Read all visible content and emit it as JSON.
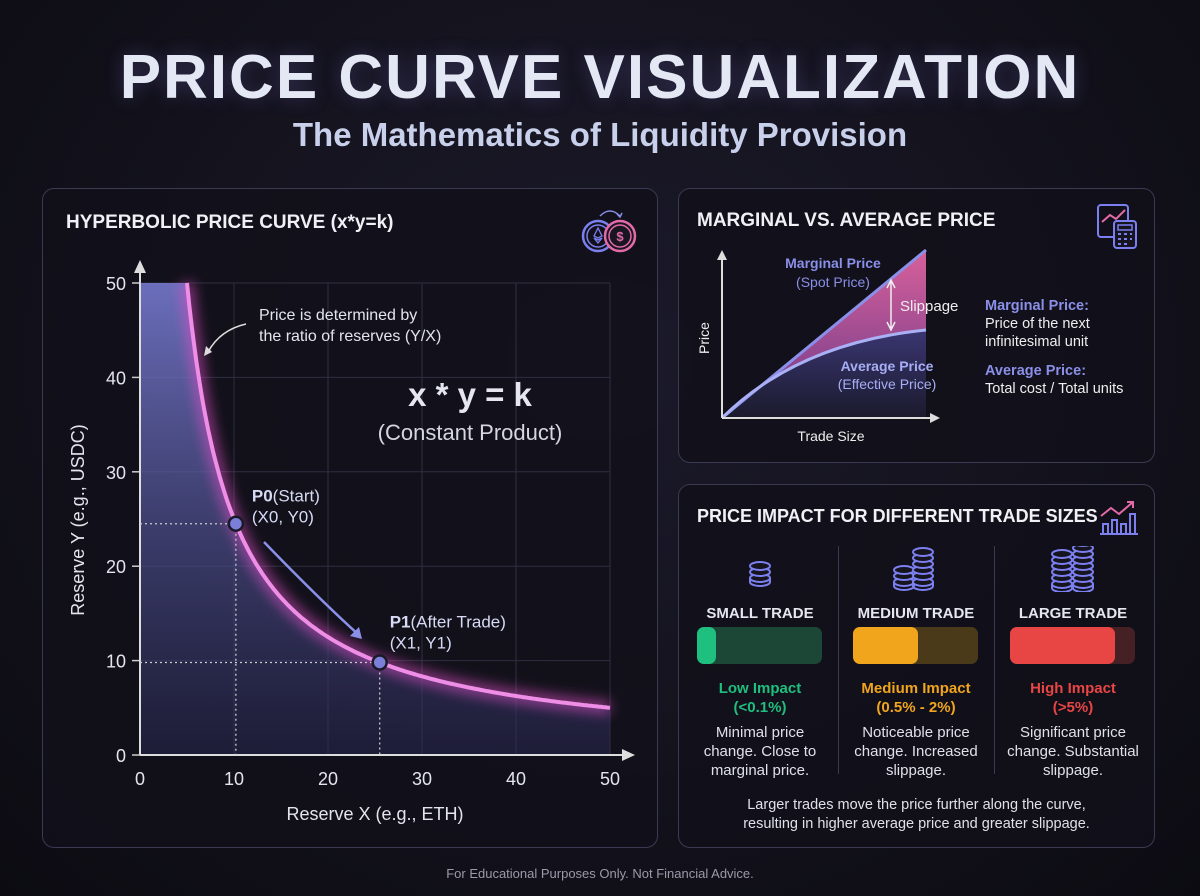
{
  "header": {
    "title": "PRICE CURVE VISUALIZATION",
    "subtitle": "The Mathematics of Liquidity Provision"
  },
  "colors": {
    "accent_blue": "#8a8fe8",
    "accent_pink": "#e37ad8",
    "green": "#1fbf7f",
    "orange": "#f0a51c",
    "red": "#e84545"
  },
  "chart_data": [
    {
      "type": "line",
      "title": "HYPERBOLIC PRICE CURVE (x*y=k)",
      "xlabel": "Reserve X (e.g., ETH)",
      "ylabel": "Reserve Y (e.g., USDC)",
      "xlim": [
        0,
        50
      ],
      "ylim": [
        0,
        50
      ],
      "k": 250,
      "xticks": [
        "0",
        "10",
        "20",
        "30",
        "40",
        "50"
      ],
      "yticks": [
        "0",
        "10",
        "20",
        "30",
        "40",
        "50"
      ],
      "grid": true,
      "points": [
        {
          "name": "P0",
          "label": "P0",
          "sub": "(Start)",
          "coords": "(X0, Y0)",
          "x": 10.2,
          "y": 24.5
        },
        {
          "name": "P1",
          "label": "P1",
          "sub": "(After Trade)",
          "coords": "(X1, Y1)",
          "x": 25.5,
          "y": 9.8
        }
      ],
      "annotation": [
        "Price is determined by",
        "the ratio of reserves (Y/X)"
      ],
      "formula": "x * y = k",
      "formula_sub": "(Constant Product)",
      "icon": "eth-usdc-swap-icon"
    },
    {
      "type": "area",
      "title": "MARGINAL VS. AVERAGE PRICE",
      "xlabel": "Trade Size",
      "ylabel": "Price",
      "series": [
        {
          "name": "Marginal Price",
          "sub": "(Spot Price)",
          "shape": "linear"
        },
        {
          "name": "Average Price",
          "sub": "(Effective Price)",
          "shape": "concave"
        }
      ],
      "annotation": "Slippage",
      "icon": "chart-calculator-icon"
    }
  ],
  "definitions": [
    {
      "term": "Marginal Price:",
      "text1": "Price of the next",
      "text2": "infinitesimal unit"
    },
    {
      "term": "Average Price:",
      "text1": "Total cost / Total units"
    }
  ],
  "impact": {
    "title": "PRICE IMPACT FOR DIFFERENT TRADE SIZES",
    "icon": "growth-chart-icon",
    "trades": [
      {
        "label": "SMALL TRADE",
        "impact": "Low Impact",
        "range": "(<0.1%)",
        "fill": 0.15,
        "color": "#1fbf7f",
        "track": "#1c4636",
        "d": [
          "Minimal price",
          "change. Close to",
          "marginal price."
        ]
      },
      {
        "label": "MEDIUM TRADE",
        "impact": "Medium Impact",
        "range": "(0.5% - 2%)",
        "fill": 0.52,
        "color": "#f0a51c",
        "track": "#4a3a1a",
        "d": [
          "Noticeable price",
          "change. Increased",
          "slippage."
        ]
      },
      {
        "label": "LARGE TRADE",
        "impact": "High Impact",
        "range": "(>5%)",
        "fill": 0.84,
        "color": "#e84545",
        "track": "#452024",
        "d": [
          "Significant price",
          "change. Substantial",
          "slippage."
        ]
      }
    ],
    "summary1": "Larger trades move the price further along the curve,",
    "summary2": "resulting in higher average price and greater slippage."
  },
  "footer": "For Educational Purposes Only. Not Financial Advice."
}
